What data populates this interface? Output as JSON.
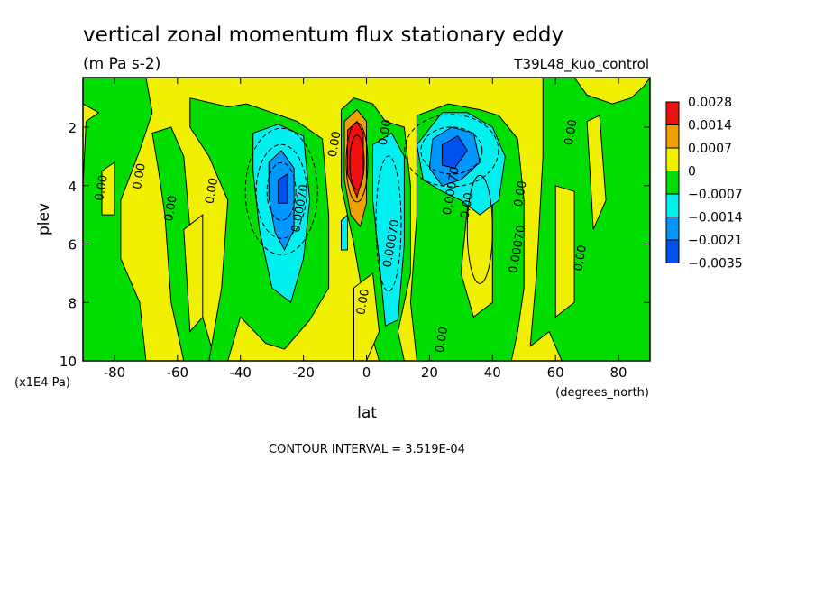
{
  "chart_data": {
    "type": "heatmap",
    "title": "vertical zonal momentum flux stationary eddy",
    "units": "(m Pa s-2)",
    "dataset": "T39L48_kuo_control",
    "xlabel": "lat",
    "x_units": "(degrees_north)",
    "ylabel": "plev",
    "y_units": "(x1E4 Pa)",
    "xlim": [
      -90,
      90
    ],
    "ylim": [
      0.3,
      10
    ],
    "y_inverted": true,
    "x_ticks": [
      "-80",
      "-60",
      "-40",
      "-20",
      "0",
      "20",
      "40",
      "60",
      "80"
    ],
    "x_tick_values": [
      -80,
      -60,
      -40,
      -20,
      0,
      20,
      40,
      60,
      80
    ],
    "y_ticks": [
      "2",
      "4",
      "6",
      "8",
      "10"
    ],
    "y_tick_values": [
      2,
      4,
      6,
      8,
      10
    ],
    "contour_interval_label": "CONTOUR INTERVAL = 3.519E-04",
    "contour_labels": [
      "0.00",
      "0.00070",
      "0.0000"
    ],
    "legend": {
      "labels": [
        "0.0028",
        "0.0014",
        "0.0007",
        "0",
        "−0.0007",
        "−0.0014",
        "−0.0021",
        "−0.0035"
      ],
      "colors": [
        "#f01010",
        "#f0a000",
        "#f0f000",
        "#00dd00",
        "#00f0f0",
        "#0096ff",
        "#0050f0"
      ]
    },
    "fill_levels": [
      -0.0035,
      -0.0021,
      -0.0014,
      -0.0007,
      0,
      0.0007,
      0.0014,
      0.0028
    ],
    "features": [
      {
        "kind": "negative",
        "lat": -27,
        "plev": 4.0,
        "min": -0.0021
      },
      {
        "kind": "positive",
        "lat": -3,
        "plev": 2.8,
        "max": 0.0028
      },
      {
        "kind": "negative",
        "lat": 5,
        "plev": 4.8,
        "min": -0.0014
      },
      {
        "kind": "negative",
        "lat": 27,
        "plev": 2.7,
        "min": -0.0021
      },
      {
        "kind": "positive",
        "lat": 36,
        "plev": 4.5,
        "max": 0.0007
      }
    ]
  }
}
